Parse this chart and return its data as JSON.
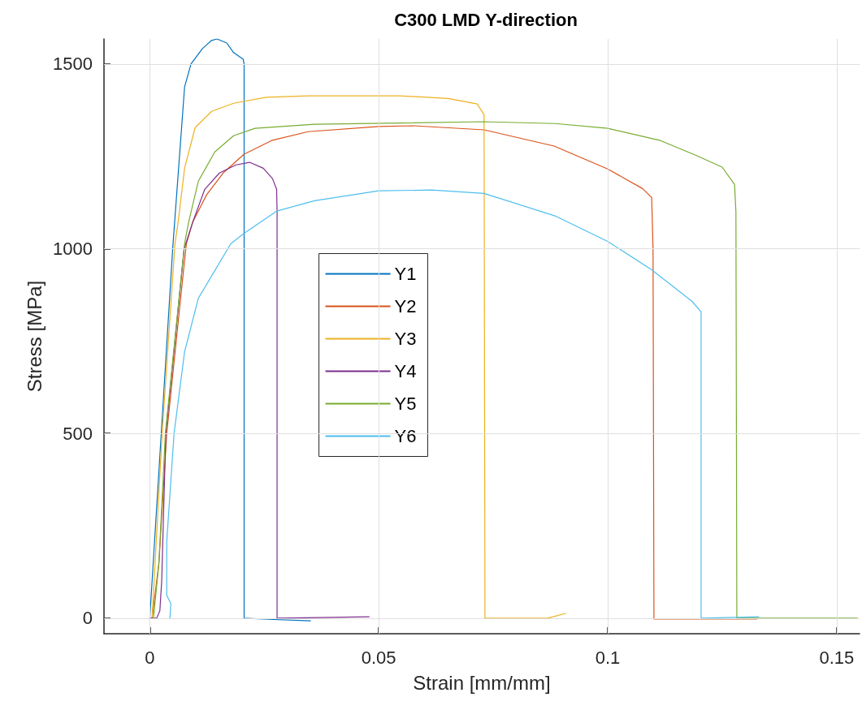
{
  "chart_data": {
    "type": "line",
    "title": "C300 LMD Y-direction",
    "xlabel": "Strain [mm/mm]",
    "ylabel": "Stress [MPa]",
    "xlim": [
      -0.01,
      0.155
    ],
    "xticks": [
      0,
      0.05,
      0.1,
      0.15
    ],
    "ylim": [
      -42,
      1568
    ],
    "yticks": [
      0,
      500,
      1000,
      1500
    ],
    "grid": true,
    "legend": "center",
    "marker": "none",
    "line_style": "solid",
    "series": [
      {
        "name": "Y1",
        "color": "#0072bd",
        "x": [
          0,
          0.0025,
          0.005,
          0.0076,
          0.009,
          0.0115,
          0.0135,
          0.0147,
          0.0168,
          0.0183,
          0.0204,
          0.0206,
          0.0206,
          0.026,
          0.0351
        ],
        "values": [
          0,
          500,
          1000,
          1438,
          1500,
          1542,
          1564,
          1568,
          1557,
          1531,
          1513,
          1500,
          0,
          -3,
          -7
        ]
      },
      {
        "name": "Y2",
        "color": "#d95319",
        "x": [
          0.0005,
          0.002,
          0.0037,
          0.0071,
          0.008,
          0.0094,
          0.0124,
          0.016,
          0.0206,
          0.0266,
          0.0346,
          0.05,
          0.0576,
          0.073,
          0.0883,
          0.1,
          0.1076,
          0.1096,
          0.1099,
          0.1101,
          0.1326
        ],
        "values": [
          0,
          150,
          500,
          910,
          1014,
          1073,
          1146,
          1205,
          1256,
          1293,
          1317,
          1331,
          1333,
          1322,
          1278,
          1216,
          1163,
          1139,
          1000,
          -2,
          -2
        ]
      },
      {
        "name": "Y3",
        "color": "#edb120",
        "x": [
          0.0005,
          0.0027,
          0.0055,
          0.0062,
          0.0076,
          0.0099,
          0.0135,
          0.0183,
          0.0254,
          0.0346,
          0.0546,
          0.0652,
          0.0715,
          0.073,
          0.0732,
          0.0869,
          0.0908
        ],
        "values": [
          0,
          500,
          1014,
          1073,
          1218,
          1328,
          1372,
          1394,
          1410,
          1414,
          1414,
          1407,
          1392,
          1363,
          0,
          0,
          13
        ]
      },
      {
        "name": "Y4",
        "color": "#7e2f8e",
        "x": [
          0,
          0.0015,
          0.0022,
          0.0026,
          0.0035,
          0.0075,
          0.0094,
          0.012,
          0.0152,
          0.0188,
          0.0218,
          0.0248,
          0.0268,
          0.0277,
          0.0278,
          0.0278,
          0.0479
        ],
        "values": [
          0,
          0,
          20,
          100,
          500,
          1000,
          1073,
          1161,
          1205,
          1227,
          1234,
          1218,
          1190,
          1161,
          1100,
          0,
          4
        ]
      },
      {
        "name": "Y5",
        "color": "#77ac30",
        "x": [
          0.0008,
          0.002,
          0.0034,
          0.0076,
          0.0085,
          0.0106,
          0.0142,
          0.0183,
          0.023,
          0.036,
          0.073,
          0.0885,
          0.1,
          0.1115,
          0.1191,
          0.125,
          0.1277,
          0.128,
          0.1282,
          0.1545
        ],
        "values": [
          0,
          150,
          500,
          1014,
          1073,
          1183,
          1262,
          1306,
          1326,
          1337,
          1344,
          1339,
          1326,
          1293,
          1254,
          1221,
          1174,
          1100,
          0,
          0
        ]
      },
      {
        "name": "Y6",
        "color": "#4dbeee",
        "x": [
          0.0044,
          0.0046,
          0.0037,
          0.0037,
          0.0053,
          0.0076,
          0.0106,
          0.0177,
          0.0206,
          0.0277,
          0.036,
          0.05,
          0.0615,
          0.073,
          0.0885,
          0.1,
          0.1096,
          0.1184,
          0.1204,
          0.1204,
          0.133
        ],
        "values": [
          0,
          40,
          62,
          207,
          500,
          721,
          866,
          1014,
          1042,
          1102,
          1130,
          1157,
          1159,
          1150,
          1089,
          1020,
          943,
          858,
          829,
          0,
          4
        ]
      }
    ]
  }
}
